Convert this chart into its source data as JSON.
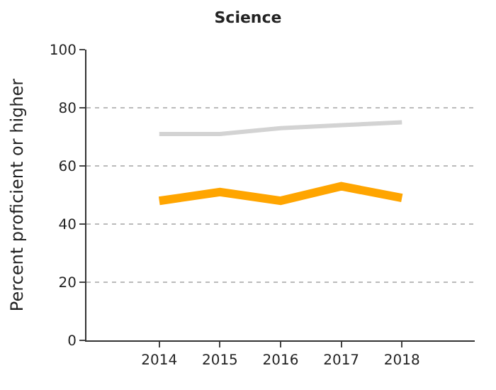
{
  "chart_data": {
    "type": "line",
    "title": "Science",
    "ylabel": "Percent proficient or higher",
    "categories": [
      "2014",
      "2015",
      "2016",
      "2017",
      "2018"
    ],
    "series": [
      {
        "color": "#d3d3d3",
        "values": [
          71,
          71,
          73,
          74,
          75
        ]
      },
      {
        "color": "#ffa500",
        "values": [
          48,
          51,
          48,
          53,
          49
        ]
      }
    ],
    "ylim": [
      0,
      100
    ],
    "yticks": [
      0,
      20,
      40,
      60,
      80,
      100
    ],
    "grid": "y",
    "marker": "none",
    "line_style": "solid"
  }
}
